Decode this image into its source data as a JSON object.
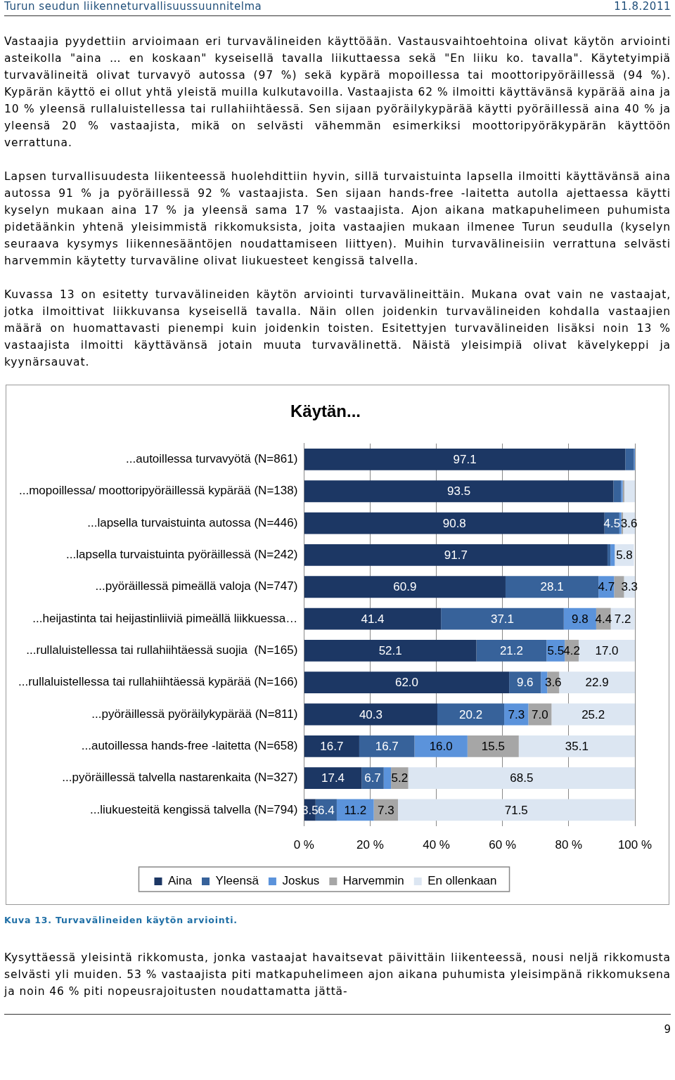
{
  "chart_data": {
    "type": "bar",
    "orientation": "horizontal",
    "stacked": true,
    "title": "Käytän...",
    "categories": [
      "...autoillessa turvavyötä (N=861)",
      "...mopoillessa/ moottoripyöräillessä kypärää (N=138)",
      "...lapsella turvaistuinta autossa (N=446)",
      "...lapsella turvaistuinta pyöräillessä (N=242)",
      "...pyöräillessä pimeällä valoja (N=747)",
      "...heijastinta tai heijastinliiviä pimeällä liikkuessa…",
      "...rullaluistellessa tai rullahiihtäessä suojia  (N=165)",
      "...rullaluistellessa tai rullahiihtäessä kypärää (N=166)",
      "...pyöräillessä pyöräilykypärää (N=811)",
      "...autoillessa hands-free -laitetta (N=658)",
      "...pyöräillessä talvella nastarenkaita (N=327)",
      "...liukuesteitä kengissä talvella (N=794)"
    ],
    "series": [
      {
        "name": "Aina",
        "color": "#1c3764",
        "values": [
          97.1,
          93.5,
          90.8,
          91.7,
          60.9,
          41.4,
          52.1,
          62.0,
          40.3,
          16.7,
          17.4,
          3.5
        ],
        "value_labels": [
          "97.1",
          "93.5",
          "90.8",
          "91.7",
          "60.9",
          "41.4",
          "52.1",
          "62.0",
          "40.3",
          "16.7",
          "17.4",
          "3.5"
        ]
      },
      {
        "name": "Yleensä",
        "color": "#37629a",
        "values": [
          2.6,
          2.3,
          4.5,
          0.9,
          28.1,
          37.1,
          21.2,
          9.6,
          20.2,
          16.7,
          6.7,
          6.4
        ],
        "value_labels": [
          null,
          null,
          "4.5",
          null,
          "28.1",
          "37.1",
          "21.2",
          "9.6",
          "20.2",
          "16.7",
          "6.7",
          "6.4"
        ]
      },
      {
        "name": "Joskus",
        "color": "#5b93db",
        "values": [
          0.3,
          0.5,
          0.6,
          1.3,
          4.7,
          9.8,
          5.5,
          1.9,
          7.3,
          16.0,
          2.2,
          11.2
        ],
        "value_labels": [
          null,
          null,
          null,
          null,
          "4.7",
          "9.8",
          "5.5",
          null,
          "7.3",
          "16.0",
          null,
          "11.2"
        ]
      },
      {
        "name": "Harvemmin",
        "color": "#a6a6a6",
        "values": [
          0,
          0.5,
          0.5,
          null,
          3.0,
          4.4,
          4.2,
          3.6,
          7.0,
          15.5,
          5.2,
          7.3
        ],
        "value_labels": [
          null,
          null,
          null,
          null,
          null,
          "4.4",
          "4.2",
          "3.6",
          "7.0",
          "15.5",
          "5.2",
          "7.3"
        ]
      },
      {
        "name": "En ollenkaan",
        "color": "#dce6f2",
        "values": [
          0,
          3.2,
          3.6,
          5.8,
          3.3,
          7.2,
          17.0,
          22.9,
          25.2,
          35.1,
          68.5,
          71.5
        ],
        "value_labels": [
          null,
          null,
          "3.6",
          "5.8",
          "3.3",
          "7.2",
          "17.0",
          "22.9",
          "25.2",
          "35.1",
          "68.5",
          "71.5"
        ]
      }
    ],
    "xlim": [
      0,
      100
    ],
    "xticks": [
      {
        "value": 0,
        "label": "0 %"
      },
      {
        "value": 20,
        "label": "20 %"
      },
      {
        "value": 40,
        "label": "40 %"
      },
      {
        "value": 60,
        "label": "60 %"
      },
      {
        "value": 80,
        "label": "80 %"
      },
      {
        "value": 100,
        "label": "100 %"
      }
    ],
    "grid": "x",
    "legend": "bottom",
    "annotations": [
      "Turun seudun liikenneturvallisuussuunnitelma",
      "11.8.2011",
      "Vastaajia pyydettiin arvioimaan eri turvavälineiden käyttöään. Vastausvaihtoehtoina olivat käytön arviointi asteikolla \"aina … en koskaan\" kyseisellä tavalla liikuttaessa sekä \"En liiku ko. tavalla\". Käytetyimpiä turvavälineitä olivat turvavyö autossa (97 %) sekä kypärä mopoillessa tai moottoripyöräillessä (94 %). Kypärän käyttö ei ollut yhtä yleistä muilla kulkutavoilla. Vastaajista 62 % ilmoitti käyttävänsä kypärää aina ja 10 % yleensä rullaluistellessa tai rullahiihtäessä. Sen sijaan pyöräilykypärää käytti pyöräillessä aina 40 % ja yleensä 20 % vastaajista, mikä on selvästi vähemmän esimerkiksi moottoripyöräkypärän käyttöön verrattuna.",
      "Lapsen turvallisuudesta liikenteessä huolehdittiin hyvin, sillä turvaistuinta lapsella ilmoitti käyttävänsä aina autossa 91 % ja pyöräillessä 92 % vastaajista. Sen sijaan hands-free -laitetta autolla ajettaessa käytti kyselyn mukaan aina 17 % ja yleensä sama 17 % vastaajista. Ajon aikana matkapuhelimeen puhumista pidetäänkin yhtenä yleisimmistä rikkomuksista, joita vastaajien mukaan ilmenee Turun seudulla (kyselyn seuraava kysymys liikennesääntöjen noudattamiseen liittyen). Muihin turvavälineisiin verrattuna selvästi harvemmin käytetty turvaväline olivat liukuesteet kengissä talvella.",
      "Kuvassa 13 on esitetty turvavälineiden käytön arviointi turvavälineittäin. Mukana ovat vain ne vastaajat, jotka ilmoittivat liikkuvansa kyseisellä tavalla. Näin ollen joidenkin turvavälineiden kohdalla vastaajien määrä on huomattavasti pienempi kuin joidenkin toisten. Esitettyjen turvavälineiden lisäksi noin 13 % vastaajista ilmoitti käyttävänsä jotain muuta turvavälinettä. Näistä yleisimpiä olivat kävelykeppi ja kyynärsauvat.",
      "Kuva 13. Turvavälineiden käytön arviointi.",
      "Kysyttäessä yleisintä rikkomusta, jonka vastaajat havaitsevat päivittäin liikenteessä, nousi neljä rikkomusta selvästi yli muiden. 53 % vastaajista piti matkapuhelimeen ajon aikana puhumista yleisimpänä rikkomuksena ja noin 46 % piti nopeusrajoitusten noudattamatta jättä-",
      "9"
    ]
  }
}
